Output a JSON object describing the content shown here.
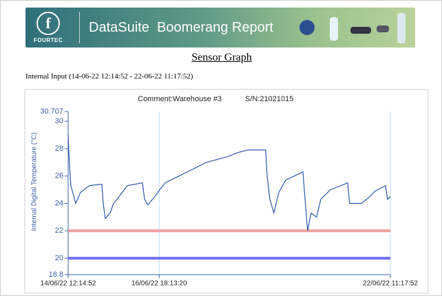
{
  "header": {
    "logo_text": "FOURTEC",
    "title": "DataSuite  Boomerang Report"
  },
  "section_title": "Sensor Graph",
  "input_label": "Internal Input (14-06-22 12:14:52 - 22-06-22 11:17:52)",
  "chart_data": {
    "type": "line",
    "comment": "Comment:Warehouse #3",
    "serial": "S/N:21021015",
    "y_label": "Internal Digital Temperature (°C)",
    "xlim": [
      "14/06/22 12:14:52",
      "22/06/22 11:17:52"
    ],
    "xticks": [
      "14/06/22 12:14:52",
      "16/06/22 18:13:20",
      "22/06/22 11:17:52"
    ],
    "ylim": [
      18.8,
      30.707
    ],
    "yticks": [
      18.8,
      20,
      22,
      24,
      26,
      28,
      30,
      30.707
    ],
    "thresholds": [
      {
        "value": 22,
        "color": "#f0a0a0"
      },
      {
        "value": 20,
        "color": "#7070f0"
      }
    ],
    "series": [
      {
        "color": "#2a58a8",
        "x": [
          "14/06/22 12:14",
          "14/06/22 13:02",
          "14/06/22 13:50",
          "14/06/22 16:44",
          "14/06/22 19:32",
          "15/06/22 00:56",
          "15/06/22 08:14",
          "15/06/22 09:02",
          "15/06/22 10:14",
          "15/06/22 13:08",
          "15/06/22 15:08",
          "15/06/22 17:14",
          "15/06/22 23:20",
          "16/06/22 08:20",
          "16/06/22 09:32",
          "16/06/22 11:32",
          "16/06/22 15:38",
          "16/06/22 18:32",
          "16/06/22 21:50",
          "17/06/22 05:56",
          "17/06/22 14:08",
          "17/06/22 22:14",
          "18/06/22 10:32",
          "18/06/22 16:38",
          "18/06/22 22:44",
          "19/06/22 09:20",
          "19/06/22 10:14",
          "19/06/22 11:50",
          "19/06/22 14:14",
          "19/06/22 17:08",
          "19/06/22 21:14",
          "20/06/22 07:26",
          "20/06/22 09:02",
          "20/06/22 10:14",
          "20/06/22 12:20",
          "20/06/22 15:32",
          "20/06/22 18:02",
          "20/06/22 23:44",
          "21/06/22 07:56",
          "21/06/22 09:56",
          "21/06/22 11:08",
          "21/06/22 18:08",
          "21/06/22 22:14",
          "22/06/22 02:14",
          "22/06/22 08:26",
          "22/06/22 09:38",
          "22/06/22 11:17"
        ],
        "values": [
          29.0,
          26.8,
          25.3,
          24.0,
          24.8,
          25.3,
          25.4,
          24.0,
          22.9,
          23.3,
          24.0,
          24.3,
          25.3,
          25.5,
          24.3,
          23.9,
          24.5,
          25.0,
          25.5,
          26.0,
          26.5,
          27.0,
          27.4,
          27.7,
          27.9,
          27.9,
          26.0,
          24.3,
          23.3,
          24.8,
          25.7,
          26.3,
          23.8,
          22.0,
          23.3,
          23.0,
          24.3,
          25.0,
          25.4,
          25.5,
          24.0,
          24.0,
          24.4,
          24.9,
          25.3,
          24.3,
          24.5
        ]
      }
    ]
  }
}
